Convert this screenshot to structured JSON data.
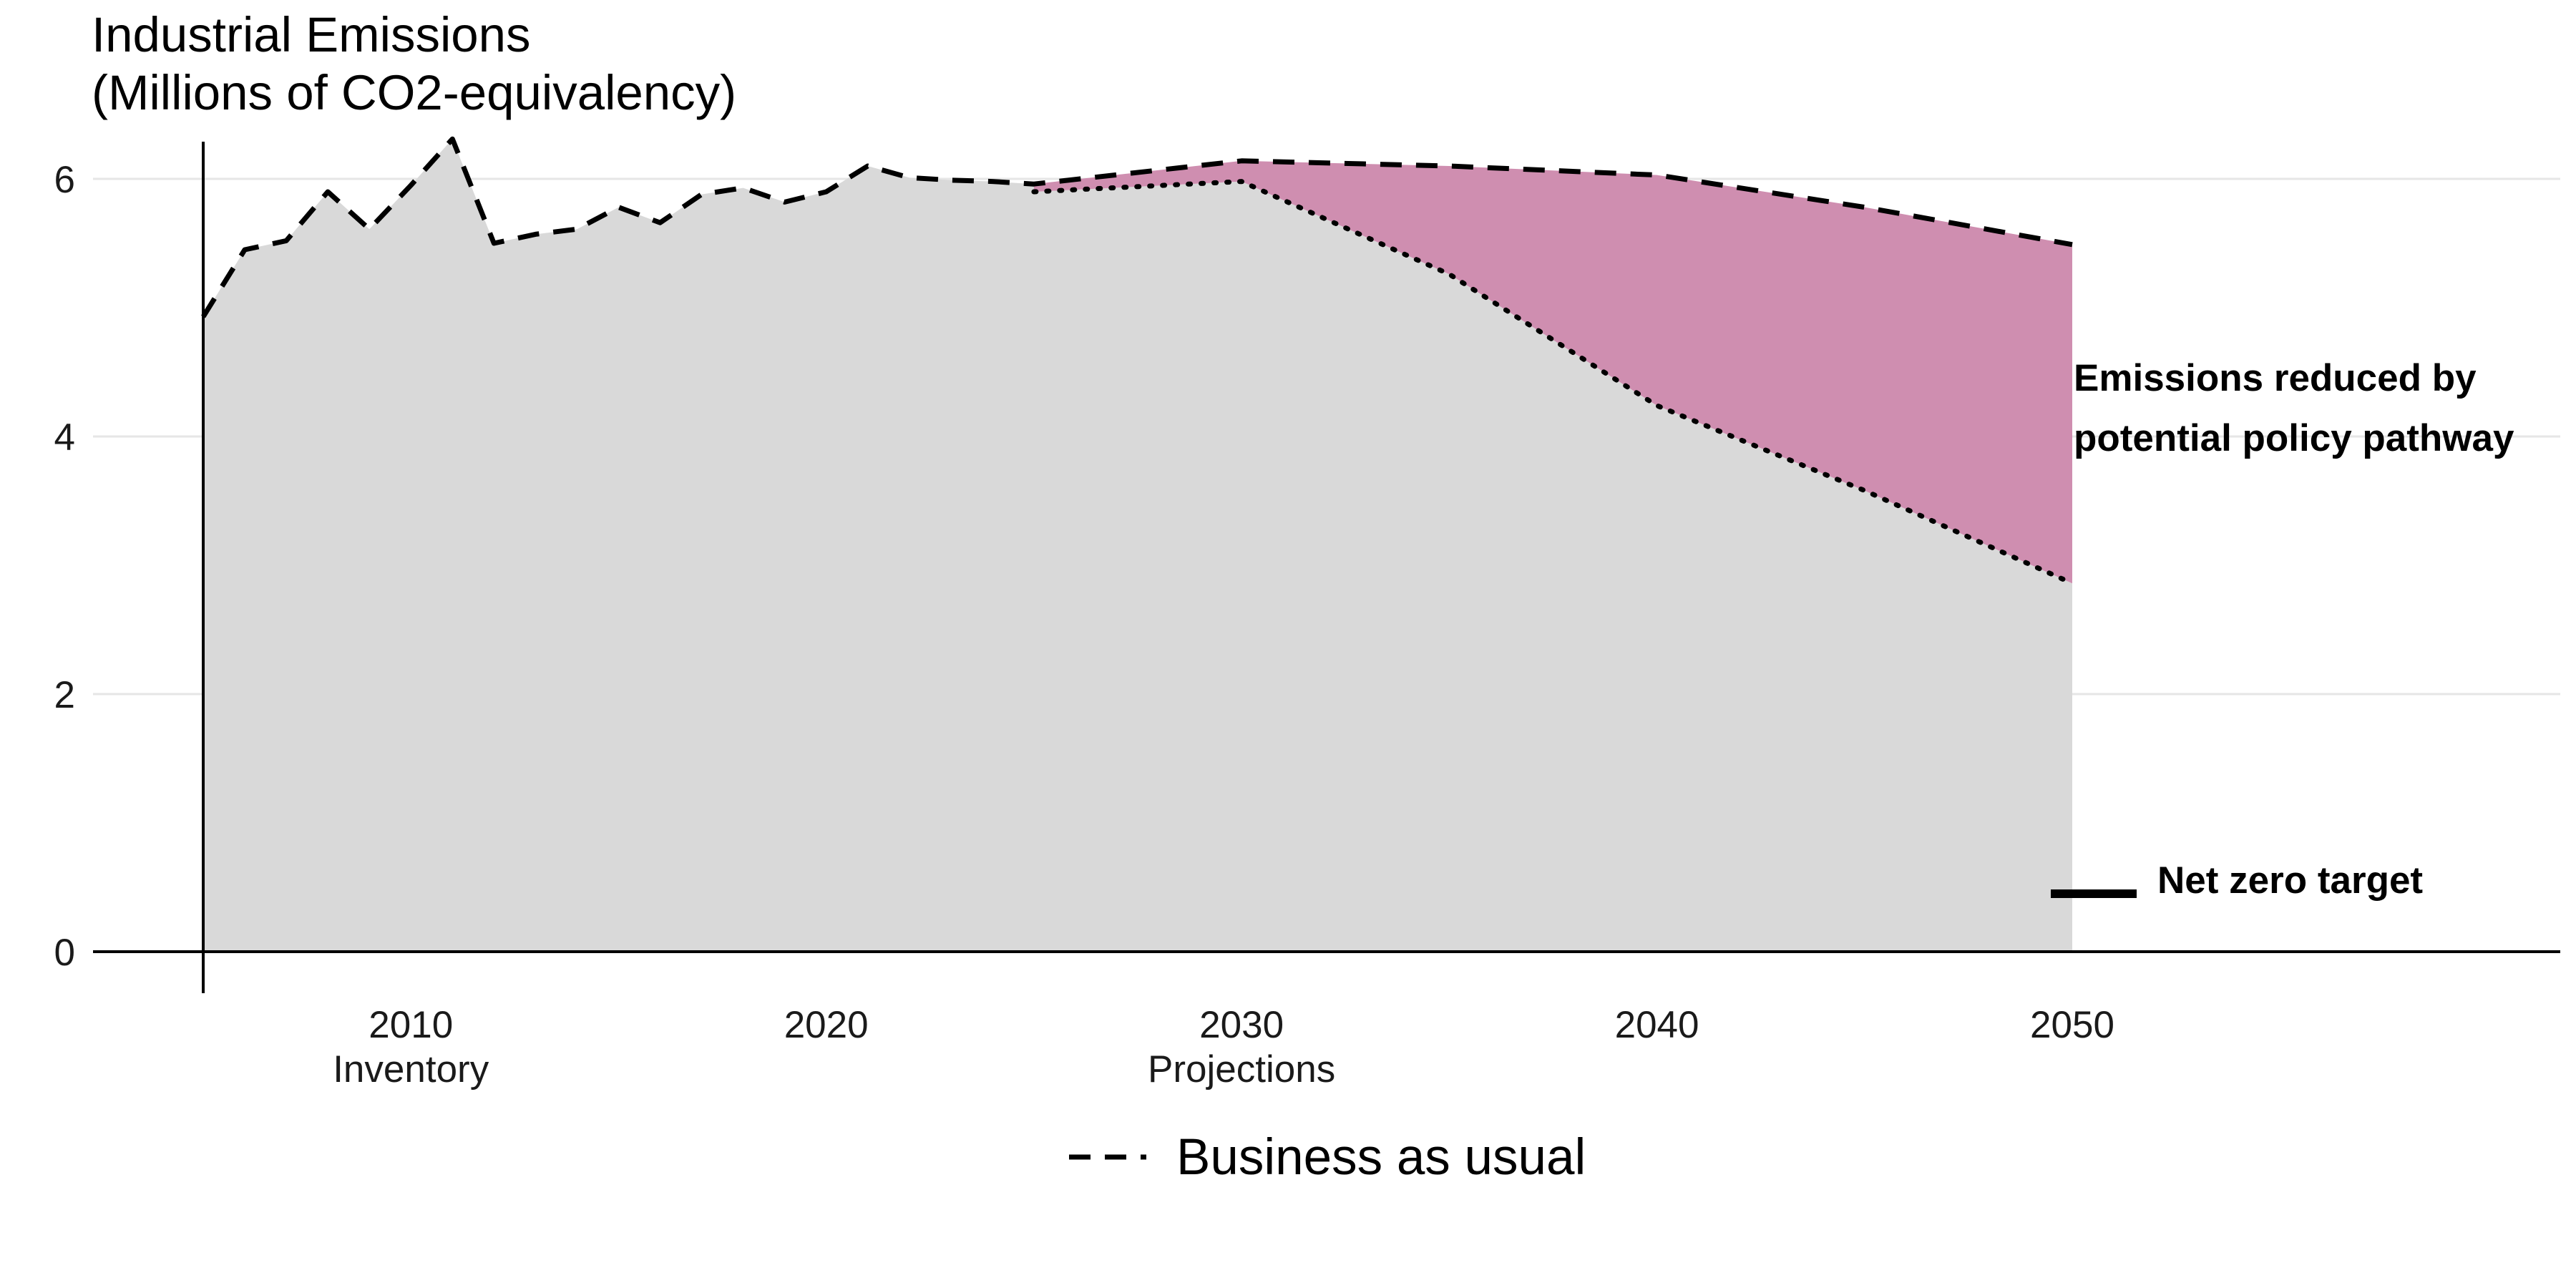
{
  "chart_data": {
    "type": "area",
    "title_lines": [
      "Industrial Emissions",
      "(Millions of CO2-equivalency)"
    ],
    "xlim": [
      2005,
      2062
    ],
    "ylim": [
      0,
      6.3
    ],
    "y_ticks": [
      0,
      2,
      4,
      6
    ],
    "x_ticks": [
      {
        "value": 2010,
        "label": "2010",
        "sublabel": "Inventory"
      },
      {
        "value": 2020,
        "label": "2020",
        "sublabel": ""
      },
      {
        "value": 2030,
        "label": "2030",
        "sublabel": "Projections"
      },
      {
        "value": 2040,
        "label": "2040",
        "sublabel": ""
      },
      {
        "value": 2050,
        "label": "2050",
        "sublabel": ""
      }
    ],
    "grid": "horizontal",
    "series": [
      {
        "name": "Business as usual",
        "style": "dashed",
        "x": [
          2005,
          2006,
          2007,
          2008,
          2009,
          2010,
          2011,
          2012,
          2013,
          2014,
          2015,
          2016,
          2017,
          2018,
          2019,
          2020,
          2021,
          2022,
          2023,
          2024,
          2025,
          2030,
          2035,
          2040,
          2045,
          2050
        ],
        "values": [
          4.93,
          5.45,
          5.52,
          5.9,
          5.61,
          5.95,
          6.31,
          5.5,
          5.57,
          5.61,
          5.78,
          5.66,
          5.88,
          5.93,
          5.82,
          5.9,
          6.1,
          6.01,
          5.99,
          5.98,
          5.96,
          6.14,
          6.1,
          6.03,
          5.78,
          5.49
        ]
      },
      {
        "style": "dotted",
        "x": [
          2025,
          2030,
          2035,
          2040,
          2045,
          2050
        ],
        "values": [
          5.9,
          5.98,
          5.26,
          4.24,
          3.58,
          2.86
        ]
      }
    ],
    "reduction_area": {
      "color": "#cf8eb0",
      "label_lines": [
        "Emissions reduced by",
        "potential policy pathway"
      ]
    },
    "net_zero_target": {
      "x": 2050,
      "y": 0.45,
      "label": "Net zero target"
    },
    "colors": {
      "historical_fill": "#d9d9d9",
      "reduction_fill": "#cf8eb0",
      "grid": "#e6e6e6",
      "axis": "#000000"
    },
    "legend": {
      "position": "bottom",
      "entries": [
        {
          "style": "dashed",
          "label": "Business as usual"
        }
      ]
    }
  }
}
